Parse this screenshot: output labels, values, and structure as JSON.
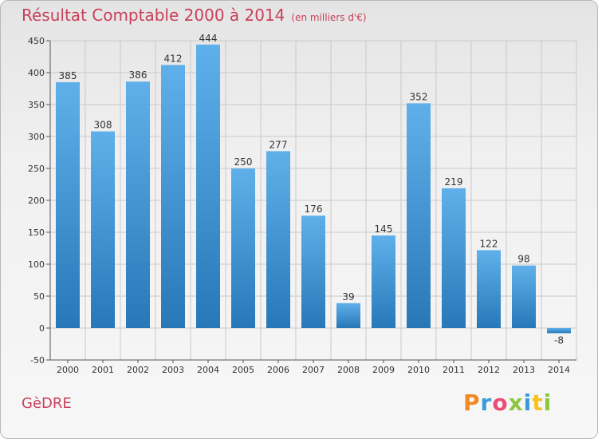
{
  "header": {
    "title": "Résultat Comptable 2000 à 2014",
    "unit": "(en milliers d'€)"
  },
  "footer": {
    "commune": "GèDRE",
    "logo": "Proxiti",
    "logo_colors": [
      "#f08a24",
      "#3b9ad9",
      "#e94e77",
      "#8dc63f",
      "#3b9ad9",
      "#f9c11c",
      "#8dc63f"
    ]
  },
  "colors": {
    "bar_top": "#5fb0ea",
    "bar_bottom": "#2878b8",
    "grid": "#c9c9c9",
    "title": "#c8405a"
  },
  "chart_data": {
    "type": "bar",
    "title": "Résultat Comptable 2000 à 2014",
    "ylabel": "en milliers d'€",
    "xlabel": "",
    "categories": [
      "2000",
      "2001",
      "2002",
      "2003",
      "2004",
      "2005",
      "2006",
      "2007",
      "2008",
      "2009",
      "2010",
      "2011",
      "2012",
      "2013",
      "2014"
    ],
    "values": [
      385,
      308,
      386,
      412,
      444,
      250,
      277,
      176,
      39,
      145,
      352,
      219,
      122,
      98,
      -8
    ],
    "ylim": [
      -50,
      450
    ],
    "yticks": [
      -50,
      0,
      50,
      100,
      150,
      200,
      250,
      300,
      350,
      400,
      450
    ],
    "grid": true
  }
}
